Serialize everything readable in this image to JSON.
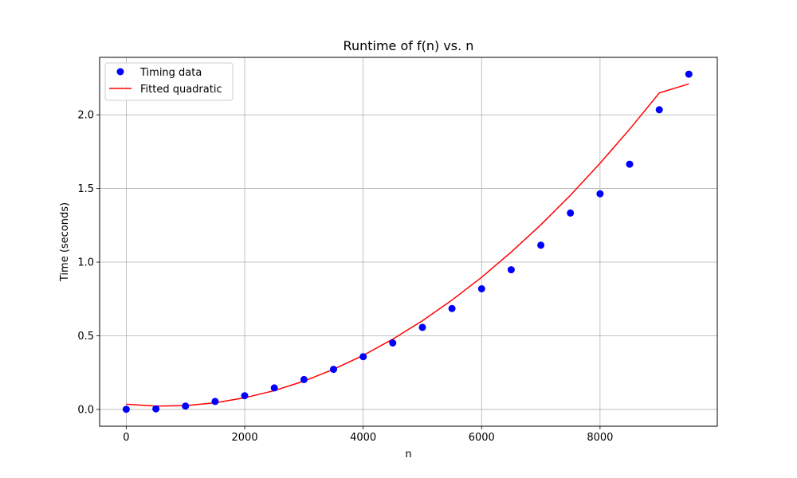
{
  "chart_data": {
    "type": "scatter",
    "title": "Runtime of f(n) vs. n",
    "xlabel": "n",
    "ylabel": "Time (seconds)",
    "xlim": [
      -450,
      9980
    ],
    "ylim": [
      -0.114,
      2.39
    ],
    "x_ticks": [
      0,
      2000,
      4000,
      6000,
      8000
    ],
    "x_tick_labels": [
      "0",
      "2000",
      "4000",
      "6000",
      "8000"
    ],
    "y_ticks": [
      0.0,
      0.5,
      1.0,
      1.5,
      2.0
    ],
    "y_tick_labels": [
      "0.0",
      "0.5",
      "1.0",
      "1.5",
      "2.0"
    ],
    "grid": true,
    "legend_position": "upper-left",
    "series": [
      {
        "name": "Timing data",
        "kind": "scatter",
        "color": "#0000ff",
        "x": [
          0,
          500,
          1000,
          1500,
          2000,
          2500,
          3000,
          3500,
          4000,
          4500,
          5000,
          5500,
          6000,
          6500,
          7000,
          7500,
          8000,
          8500,
          9000,
          9500
        ],
        "y": [
          0.001,
          0.004,
          0.023,
          0.054,
          0.093,
          0.146,
          0.203,
          0.272,
          0.358,
          0.451,
          0.557,
          0.685,
          0.819,
          0.948,
          1.115,
          1.333,
          1.464,
          1.665,
          2.034,
          2.276
        ]
      },
      {
        "name": "Fitted quadratic",
        "kind": "line",
        "color": "#ff0000",
        "x": [
          0,
          500,
          1000,
          1500,
          2000,
          2500,
          3000,
          3500,
          4000,
          4500,
          5000,
          5500,
          6000,
          6500,
          7000,
          7500,
          8000,
          8500,
          9000,
          9500
        ],
        "y": [
          0.035,
          0.023,
          0.026,
          0.045,
          0.079,
          0.128,
          0.192,
          0.272,
          0.367,
          0.477,
          0.602,
          0.742,
          0.897,
          1.068,
          1.253,
          1.454,
          1.671,
          1.902,
          2.148,
          2.21
        ]
      }
    ]
  }
}
